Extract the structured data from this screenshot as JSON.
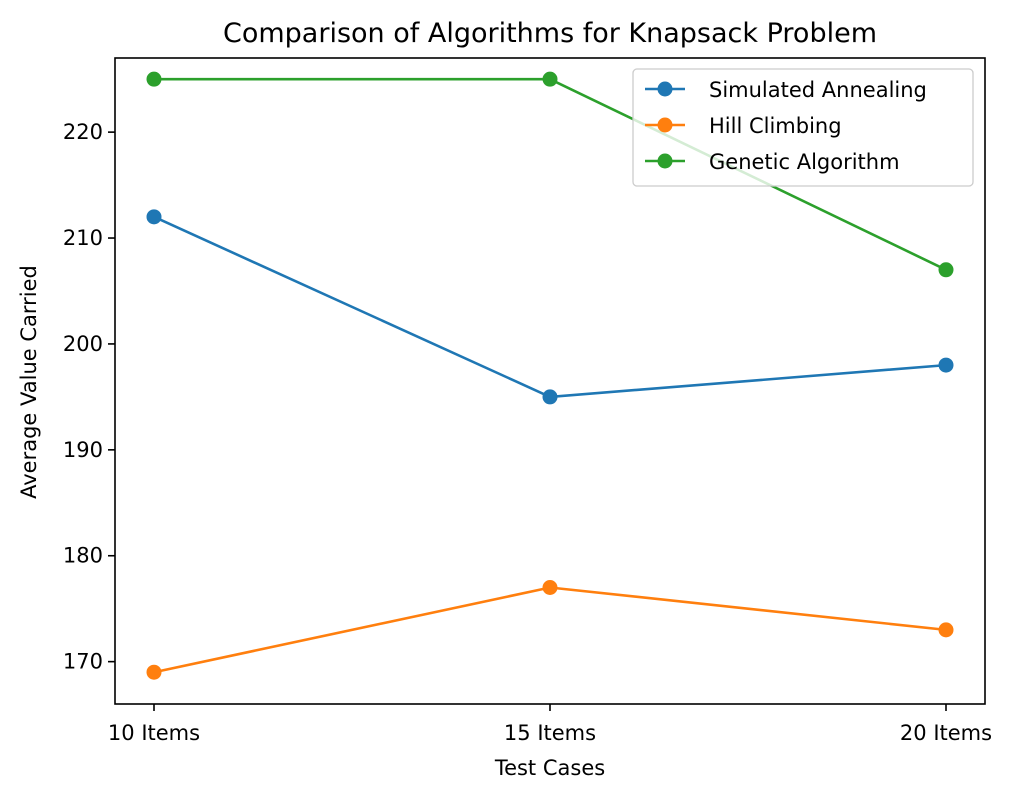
{
  "chart_data": {
    "type": "line",
    "title": "Comparison of Algorithms for Knapsack Problem",
    "xlabel": "Test Cases",
    "ylabel": "Average Value Carried",
    "categories": [
      "10 Items",
      "15 Items",
      "20 Items"
    ],
    "ylim": [
      166,
      227
    ],
    "yticks": [
      170,
      180,
      190,
      200,
      210,
      220
    ],
    "grid": false,
    "legend_position": "top-right",
    "series": [
      {
        "name": "Simulated Annealing",
        "values": [
          212,
          195,
          198
        ],
        "color": "#1f77b4",
        "marker": "circle"
      },
      {
        "name": "Hill Climbing",
        "values": [
          169,
          177,
          173
        ],
        "color": "#ff7f0e",
        "marker": "circle"
      },
      {
        "name": "Genetic Algorithm",
        "values": [
          225,
          225,
          207
        ],
        "color": "#2ca02c",
        "marker": "circle"
      }
    ]
  }
}
